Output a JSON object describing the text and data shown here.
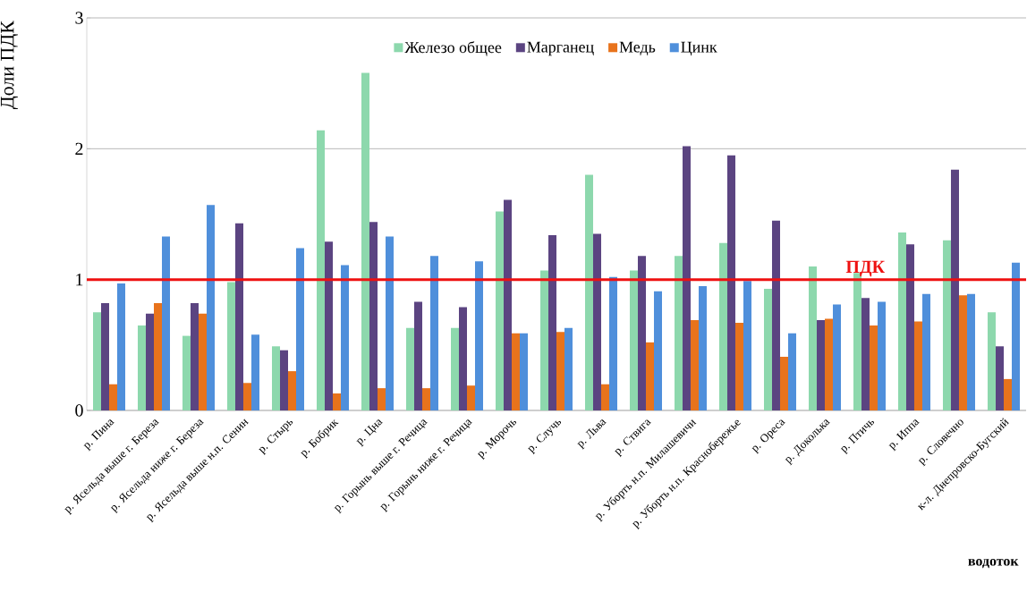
{
  "chart_data": {
    "type": "bar",
    "ylabel": "Доли ПДК",
    "xlabel": "водоток",
    "categories": [
      "р. Пина",
      "р. Ясельда выше г. Береза",
      "р. Ясельда ниже г. Береза",
      "р. Ясельда выше н.п. Сенин",
      "р. Стырь",
      "р. Бобрик",
      "р. Цна",
      "р. Горынь выше г. Речица",
      "р. Горынь ниже г. Речица",
      "р. Морочь",
      "р. Случь",
      "р. Льва",
      "р. Ствига",
      "р. Уборть н.п. Милашевичи",
      "р. Уборть  н.п. Краснобережье",
      "р. Ореса",
      "р. Доколька",
      "р. Птичь",
      "р. Иппа",
      "р. Словечно",
      "к-л. Днепровско-Бугский"
    ],
    "series": [
      {
        "name": "Железо общее",
        "color": "#8dd8ad",
        "values": [
          0.75,
          0.65,
          0.57,
          0.98,
          0.49,
          2.14,
          2.58,
          0.63,
          0.63,
          1.52,
          1.07,
          1.8,
          1.07,
          1.18,
          1.28,
          0.93,
          1.1,
          1.05,
          1.36,
          1.3,
          0.75
        ]
      },
      {
        "name": "Марганец",
        "color": "#5b4481",
        "values": [
          0.82,
          0.74,
          0.82,
          1.43,
          0.46,
          1.29,
          1.44,
          0.83,
          0.79,
          1.61,
          1.34,
          1.35,
          1.18,
          2.02,
          1.95,
          1.45,
          0.69,
          0.86,
          1.27,
          1.84,
          0.49
        ]
      },
      {
        "name": "Медь",
        "color": "#e8731c",
        "values": [
          0.2,
          0.82,
          0.74,
          0.21,
          0.3,
          0.13,
          0.17,
          0.17,
          0.19,
          0.59,
          0.6,
          0.2,
          0.52,
          0.69,
          0.67,
          0.41,
          0.7,
          0.65,
          0.68,
          0.88,
          0.24
        ]
      },
      {
        "name": "Цинк",
        "color": "#4f8fdb",
        "values": [
          0.97,
          1.33,
          1.57,
          0.58,
          1.24,
          1.11,
          1.33,
          1.18,
          1.14,
          0.59,
          0.63,
          1.02,
          0.91,
          0.95,
          0.99,
          0.59,
          0.81,
          0.83,
          0.89,
          0.89,
          1.13
        ]
      }
    ],
    "ylim": [
      0,
      3
    ],
    "yticks": [
      0,
      1,
      2,
      3
    ],
    "grid": "y",
    "legend": "top",
    "ref_lines": [
      {
        "axis": "y",
        "value": 1,
        "label": "ПДК",
        "color": "#ee1111"
      }
    ]
  }
}
